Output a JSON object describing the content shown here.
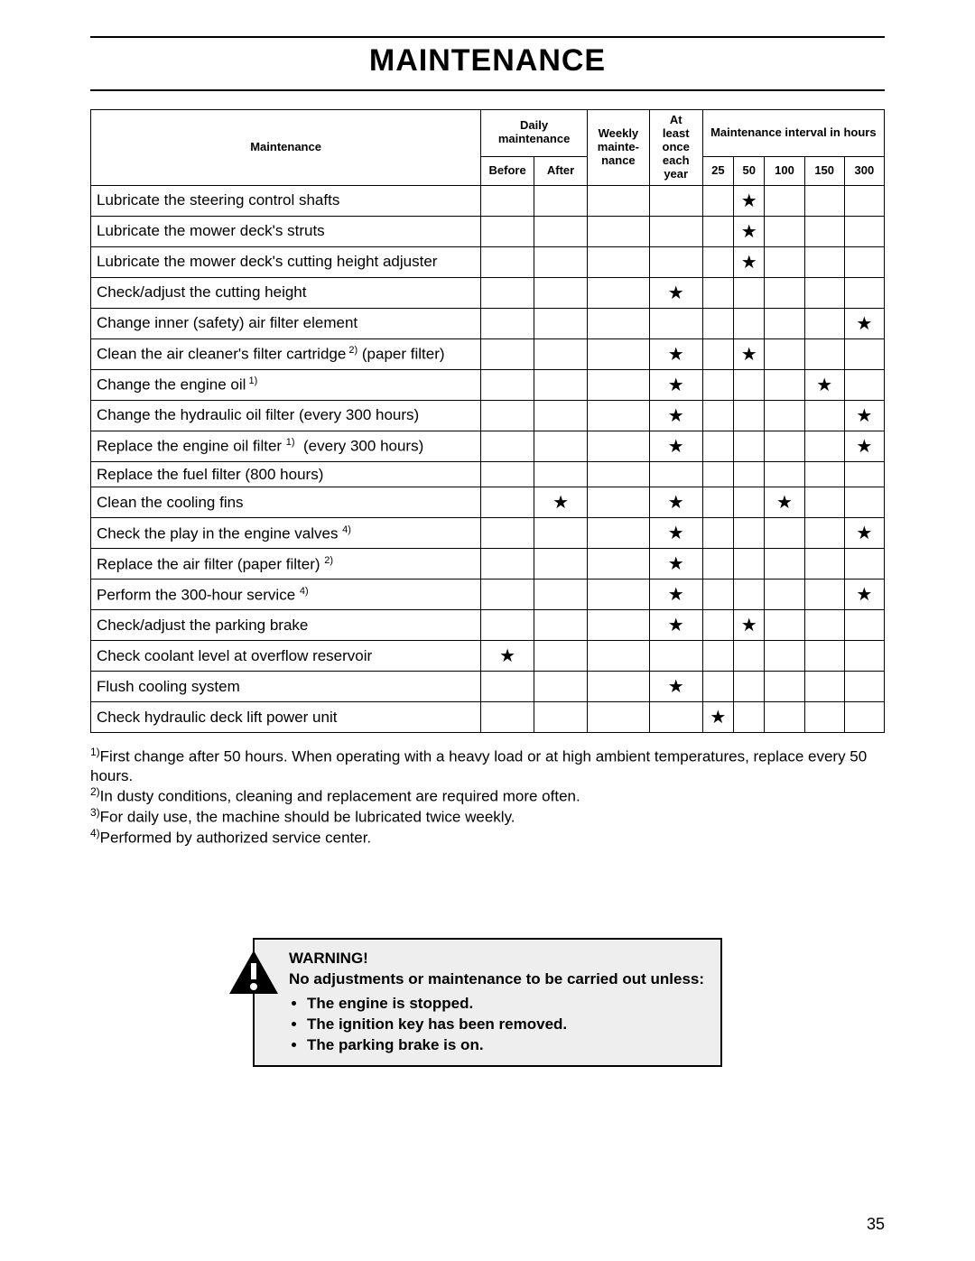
{
  "title": "MAINTENANCE",
  "page_number": "35",
  "header": {
    "maintenance": "Maintenance",
    "daily": "Daily maintenance",
    "weekly": "Weekly mainte- nance",
    "yearly": "At least once each year",
    "interval": "Maintenance interval in hours",
    "before": "Before",
    "after": "After",
    "h25": "25",
    "h50": "50",
    "h100": "100",
    "h150": "150",
    "h300": "300"
  },
  "star": "★",
  "rows": [
    {
      "label": "Lubricate the steering control shafts",
      "cols": [
        "",
        "",
        "",
        "",
        "",
        "★",
        "",
        "",
        ""
      ]
    },
    {
      "label": "Lubricate the mower deck's struts",
      "cols": [
        "",
        "",
        "",
        "",
        "",
        "★",
        "",
        "",
        ""
      ]
    },
    {
      "label": "Lubricate the mower deck's cutting height adjuster",
      "cols": [
        "",
        "",
        "",
        "",
        "",
        "★",
        "",
        "",
        ""
      ]
    },
    {
      "label": "Check/adjust the cutting height",
      "cols": [
        "",
        "",
        "",
        "★",
        "",
        "",
        "",
        "",
        ""
      ]
    },
    {
      "label": "Change inner (safety) air filter element",
      "cols": [
        "",
        "",
        "",
        "",
        "",
        "",
        "",
        "",
        "★"
      ]
    },
    {
      "label": "Clean the air cleaner's filter cartridge<sup> 2)</sup> (paper filter)",
      "cols": [
        "",
        "",
        "",
        "★",
        "",
        "★",
        "",
        "",
        ""
      ]
    },
    {
      "label": "Change the engine oil<sup> 1)</sup>",
      "cols": [
        "",
        "",
        "",
        "★",
        "",
        "",
        "",
        "★",
        ""
      ]
    },
    {
      "label": "Change the hydraulic oil filter (every 300 hours)",
      "cols": [
        "",
        "",
        "",
        "★",
        "",
        "",
        "",
        "",
        "★"
      ]
    },
    {
      "label": "Replace the engine oil filter <sup>1)</sup>&nbsp; (every 300 hours)",
      "cols": [
        "",
        "",
        "",
        "★",
        "",
        "",
        "",
        "",
        "★"
      ]
    },
    {
      "label": "Replace the fuel filter (800 hours)",
      "cols": [
        "",
        "",
        "",
        "",
        "",
        "",
        "",
        "",
        ""
      ]
    },
    {
      "label": "Clean the cooling fins",
      "cols": [
        "",
        "★",
        "",
        "★",
        "",
        "",
        "★",
        "",
        ""
      ]
    },
    {
      "label": "Check the play in the engine valves <sup>4)</sup>",
      "cols": [
        "",
        "",
        "",
        "★",
        "",
        "",
        "",
        "",
        "★"
      ]
    },
    {
      "label": "Replace the air filter (paper filter) <sup>2)</sup>",
      "cols": [
        "",
        "",
        "",
        "★",
        "",
        "",
        "",
        "",
        ""
      ]
    },
    {
      "label": "Perform the 300-hour service <sup>4)</sup>",
      "cols": [
        "",
        "",
        "",
        "★",
        "",
        "",
        "",
        "",
        "★"
      ]
    },
    {
      "label": "Check/adjust the parking brake",
      "cols": [
        "",
        "",
        "",
        "★",
        "",
        "★",
        "",
        "",
        ""
      ]
    },
    {
      "label": "Check coolant level at overflow reservoir",
      "cols": [
        "★",
        "",
        "",
        "",
        "",
        "",
        "",
        "",
        ""
      ]
    },
    {
      "label": "Flush cooling system",
      "cols": [
        "",
        "",
        "",
        "★",
        "",
        "",
        "",
        "",
        ""
      ]
    },
    {
      "label": "Check hydraulic deck lift power unit",
      "cols": [
        "",
        "",
        "",
        "",
        "★",
        "",
        "",
        "",
        ""
      ]
    }
  ],
  "footnotes": [
    "<sup>1)</sup>First change after 50 hours. When operating with a heavy load or at high ambient temperatures, replace every 50 hours.",
    "<sup>2)</sup>In dusty conditions, cleaning and replacement are required more often.",
    "<sup>3)</sup>For daily use, the machine should be lubricated twice weekly.",
    "<sup>4)</sup>Performed by authorized service center."
  ],
  "warning": {
    "heading": "WARNING!",
    "lead": "No adjustments or maintenance to be carried out unless:",
    "items": [
      "The engine is stopped.",
      "The ignition key has been removed.",
      "The parking brake is on."
    ]
  }
}
